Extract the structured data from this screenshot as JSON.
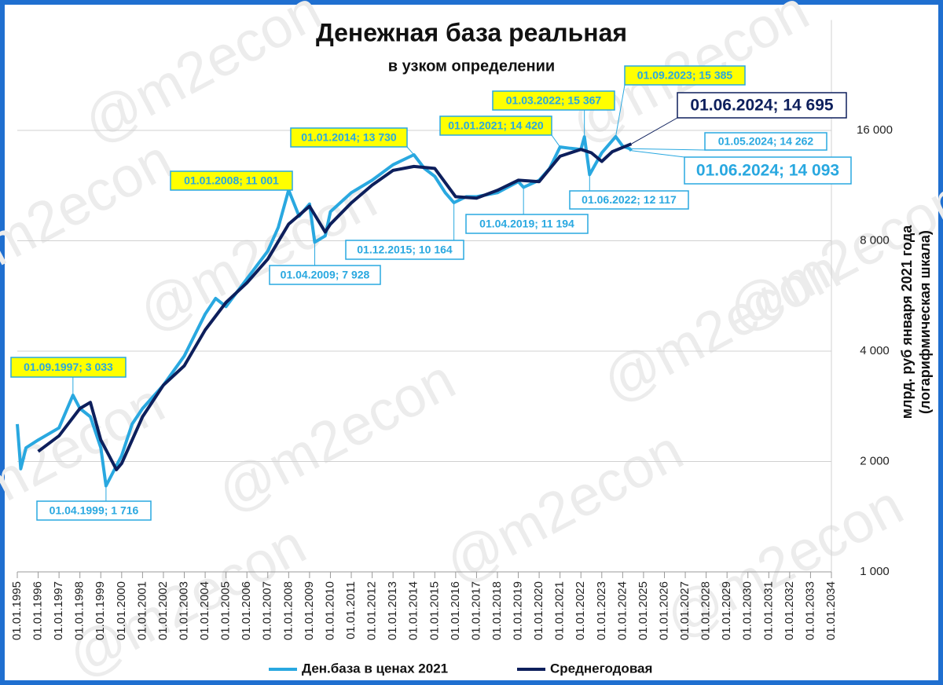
{
  "chart_data": {
    "type": "line",
    "log_y": true,
    "grid": true,
    "legend": "bottom",
    "title": "Денежная база реальная",
    "subtitle": "в узком определении",
    "y_label": [
      "млрд. руб января 2021 года",
      "(логарифмическая шкала)"
    ],
    "watermark": "@m2econ",
    "xlim": [
      "01.01.1995",
      "01.01.2034"
    ],
    "xticks": [
      "01.01.1995",
      "01.01.1996",
      "01.01.1997",
      "01.01.1998",
      "01.01.1999",
      "01.01.2000",
      "01.01.2001",
      "01.01.2002",
      "01.01.2003",
      "01.01.2004",
      "01.01.2005",
      "01.01.2006",
      "01.01.2007",
      "01.01.2008",
      "01.01.2009",
      "01.01.2010",
      "01.01.2011",
      "01.01.2012",
      "01.01.2013",
      "01.01.2014",
      "01.01.2015",
      "01.01.2016",
      "01.01.2017",
      "01.01.2018",
      "01.01.2019",
      "01.01.2020",
      "01.01.2021",
      "01.01.2022",
      "01.01.2023",
      "01.01.2024",
      "01.01.2025",
      "01.01.2026",
      "01.01.2027",
      "01.01.2028",
      "01.01.2029",
      "01.01.2030",
      "01.01.2031",
      "01.01.2032",
      "01.01.2033",
      "01.01.2034"
    ],
    "ylim": [
      1000,
      32000
    ],
    "yticks": [
      {
        "value": 1000,
        "label": "1 000"
      },
      {
        "value": 2000,
        "label": "2 000"
      },
      {
        "value": 4000,
        "label": "4 000"
      },
      {
        "value": 8000,
        "label": "8 000"
      },
      {
        "value": 16000,
        "label": "16 000"
      }
    ],
    "series": [
      {
        "name": "Ден.база в ценах 2021",
        "color": "#29a8e0",
        "x": [
          "01.01.1995",
          "01.03.1995",
          "01.06.1995",
          "01.01.1996",
          "01.01.1997",
          "01.09.1997",
          "01.01.1998",
          "01.07.1998",
          "01.01.1999",
          "01.04.1999",
          "01.01.2000",
          "01.07.2000",
          "01.01.2001",
          "01.01.2002",
          "01.01.2003",
          "01.01.2004",
          "01.07.2004",
          "01.01.2005",
          "01.01.2006",
          "01.01.2007",
          "01.07.2007",
          "01.01.2008",
          "01.07.2008",
          "01.01.2009",
          "01.04.2009",
          "01.10.2009",
          "01.01.2010",
          "01.01.2011",
          "01.01.2012",
          "01.01.2013",
          "01.01.2014",
          "01.07.2014",
          "01.01.2015",
          "01.07.2015",
          "01.12.2015",
          "01.07.2016",
          "01.01.2017",
          "01.01.2018",
          "01.01.2019",
          "01.04.2019",
          "01.01.2020",
          "01.07.2020",
          "01.01.2021",
          "01.07.2021",
          "01.01.2022",
          "01.03.2022",
          "01.06.2022",
          "01.01.2023",
          "01.09.2023",
          "01.01.2024",
          "01.05.2024",
          "01.06.2024"
        ],
        "values": [
          2530,
          1910,
          2180,
          2290,
          2470,
          3033,
          2790,
          2650,
          2180,
          1716,
          2075,
          2530,
          2790,
          3230,
          3880,
          5050,
          5570,
          5290,
          6300,
          7500,
          8700,
          11001,
          9330,
          10080,
          7928,
          8250,
          9600,
          10820,
          11700,
          12900,
          13730,
          12600,
          11990,
          10820,
          10164,
          10550,
          10550,
          10820,
          11600,
          11194,
          11700,
          12600,
          14420,
          14300,
          14200,
          15367,
          12117,
          13900,
          15385,
          14500,
          14262,
          14093
        ]
      },
      {
        "name": "Среднегодовая",
        "color": "#0d1f5c",
        "x": [
          "01.01.1996",
          "01.01.1997",
          "01.01.1998",
          "01.07.1998",
          "01.01.1999",
          "01.10.1999",
          "01.01.2000",
          "01.01.2001",
          "01.01.2002",
          "01.01.2003",
          "01.01.2004",
          "01.01.2005",
          "01.01.2006",
          "01.01.2007",
          "01.01.2008",
          "01.01.2009",
          "01.10.2009",
          "01.01.2010",
          "01.01.2011",
          "01.01.2012",
          "01.01.2013",
          "01.01.2014",
          "01.01.2015",
          "01.01.2016",
          "01.01.2017",
          "01.01.2018",
          "01.01.2019",
          "01.01.2020",
          "01.01.2021",
          "01.01.2022",
          "01.07.2022",
          "01.01.2023",
          "01.07.2023",
          "01.06.2024"
        ],
        "values": [
          2130,
          2350,
          2790,
          2900,
          2290,
          1900,
          1975,
          2650,
          3230,
          3650,
          4570,
          5430,
          6140,
          7130,
          8880,
          9940,
          8450,
          8880,
          10150,
          11350,
          12450,
          12760,
          12600,
          10550,
          10450,
          10980,
          11700,
          11600,
          13600,
          14200,
          13900,
          13170,
          14000,
          14695
        ]
      }
    ],
    "annotations": [
      {
        "label": "01.09.1997; 3 033",
        "x": "01.09.1997",
        "value": 3033
      },
      {
        "label": "01.04.1999; 1 716",
        "x": "01.04.1999",
        "value": 1716
      },
      {
        "label": "01.01.2008; 11 001",
        "x": "01.01.2008",
        "value": 11001
      },
      {
        "label": "01.04.2009; 7 928",
        "x": "01.04.2009",
        "value": 7928
      },
      {
        "label": "01.01.2014; 13 730",
        "x": "01.01.2014",
        "value": 13730
      },
      {
        "label": "01.12.2015; 10 164",
        "x": "01.12.2015",
        "value": 10164
      },
      {
        "label": "01.01.2021; 14 420",
        "x": "01.01.2021",
        "value": 14420
      },
      {
        "label": "01.04.2019; 11 194",
        "x": "01.04.2019",
        "value": 11194
      },
      {
        "label": "01.03.2022; 15 367",
        "x": "01.03.2022",
        "value": 15367
      },
      {
        "label": "01.06.2022; 12 117",
        "x": "01.06.2022",
        "value": 12117
      },
      {
        "label": "01.09.2023; 15 385",
        "x": "01.09.2023",
        "value": 15385
      },
      {
        "label": "01.06.2024;  14 695",
        "x": "01.06.2024",
        "value": 14695
      },
      {
        "label": "01.05.2024; 14 262",
        "x": "01.05.2024",
        "value": 14262
      },
      {
        "label": "01.06.2024;  14 093",
        "x": "01.06.2024",
        "value": 14093
      }
    ]
  }
}
